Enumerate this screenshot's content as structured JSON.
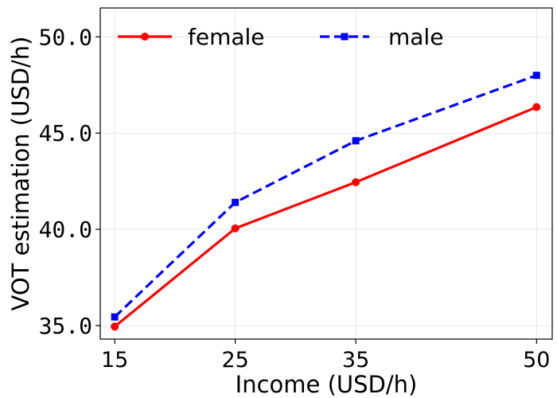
{
  "chart_data": {
    "type": "line",
    "x": [
      15,
      25,
      35,
      50
    ],
    "x_tick_labels": [
      "15",
      "25",
      "35",
      "50"
    ],
    "xlabel": "Income (USD/h)",
    "ylabel": "VOT estimation (USD/h)",
    "xlim": [
      13.8,
      51.3
    ],
    "ylim": [
      34.3,
      51.5
    ],
    "y_ticks": [
      35.0,
      40.0,
      45.0,
      50.0
    ],
    "y_tick_labels": [
      "35.0",
      "40.0",
      "45.0",
      "50.0"
    ],
    "grid": true,
    "legend_position": "top",
    "series": [
      {
        "name": "female",
        "values": [
          34.95,
          40.05,
          42.45,
          46.35
        ],
        "color": "#ff0000",
        "dash": "solid",
        "marker": "circle"
      },
      {
        "name": "male",
        "values": [
          35.45,
          41.4,
          44.6,
          48.0
        ],
        "color": "#0000ff",
        "dash": "dashed",
        "marker": "square"
      }
    ]
  }
}
